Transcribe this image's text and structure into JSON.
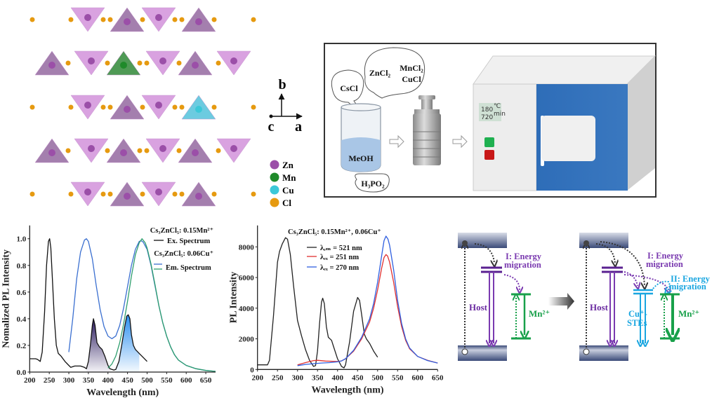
{
  "crystal": {
    "axes": {
      "b": "b",
      "c": "c",
      "a": "a"
    },
    "legend": [
      {
        "label": "Zn",
        "color": "#9b4fa8"
      },
      {
        "label": "Mn",
        "color": "#1f8a2a"
      },
      {
        "label": "Cu",
        "color": "#3cc8d8"
      },
      {
        "label": "Cl",
        "color": "#e69a10"
      }
    ]
  },
  "synthesis": {
    "bubble_cscl": "CsCl",
    "bubble_zncl2": "ZnCl₂",
    "bubble_mncl2": "MnCl₂",
    "bubble_cucl": "CuCl",
    "solvent": "MeOH",
    "bubble_h3po2": "H₃PO₂",
    "oven_temp": "180",
    "oven_temp_unit": "℃",
    "oven_time": "720",
    "oven_time_unit": "min"
  },
  "chart_data": [
    {
      "type": "line",
      "title": "",
      "xlabel": "Wavelength (nm)",
      "ylabel": "Nomalized PL Intensity",
      "xlim": [
        200,
        675
      ],
      "ylim": [
        0,
        1.1
      ],
      "xticks": [
        200,
        250,
        300,
        350,
        400,
        450,
        500,
        550,
        600,
        650
      ],
      "yticks": [
        0.0,
        0.2,
        0.4,
        0.6,
        0.8,
        1.0
      ],
      "legend": {
        "placement": "top-right",
        "group1": "Cs₃ZnCl₅: 0.15Mn²⁺",
        "ex_label": "Ex. Spectrum",
        "group2": "Cs₃ZnCl₅: 0.06Cu⁺",
        "em_label": "Em. Spectrum"
      },
      "series": [
        {
          "name": "Ex. Spectrum (black)",
          "color": "#111111",
          "x": [
            200,
            215,
            220,
            227,
            232,
            238,
            243,
            248,
            251,
            254,
            258,
            263,
            268,
            273,
            280,
            290,
            300,
            305,
            315,
            330,
            340,
            345,
            350,
            355,
            360,
            363,
            367,
            372,
            378,
            385,
            392,
            400,
            405,
            415,
            420,
            428,
            435,
            442,
            448,
            452,
            456,
            460,
            465,
            470,
            480,
            490,
            500
          ],
          "y": [
            0.1,
            0.1,
            0.095,
            0.08,
            0.15,
            0.45,
            0.8,
            0.98,
            1.0,
            0.93,
            0.7,
            0.4,
            0.2,
            0.14,
            0.12,
            0.08,
            0.05,
            0.035,
            0.045,
            0.045,
            0.035,
            0.025,
            0.08,
            0.2,
            0.35,
            0.4,
            0.35,
            0.22,
            0.19,
            0.17,
            0.12,
            0.05,
            0.025,
            0.015,
            0.02,
            0.08,
            0.2,
            0.33,
            0.42,
            0.43,
            0.4,
            0.28,
            0.2,
            0.17,
            0.14,
            0.11,
            0.08
          ]
        },
        {
          "name": "Em. Spectrum (blue)",
          "color": "#3a6fd0",
          "x": [
            300,
            310,
            320,
            330,
            340,
            345,
            350,
            360,
            370,
            380,
            390,
            400,
            410,
            420,
            430,
            440,
            450,
            460,
            470,
            480,
            485,
            490,
            500,
            510,
            520,
            530,
            540,
            550,
            560,
            570,
            580,
            600,
            625,
            650,
            675
          ],
          "y": [
            0.15,
            0.4,
            0.7,
            0.9,
            0.99,
            1.0,
            0.98,
            0.85,
            0.65,
            0.47,
            0.34,
            0.27,
            0.25,
            0.27,
            0.35,
            0.48,
            0.64,
            0.8,
            0.92,
            0.98,
            0.985,
            0.975,
            0.92,
            0.8,
            0.65,
            0.5,
            0.37,
            0.27,
            0.19,
            0.13,
            0.09,
            0.05,
            0.025,
            0.012,
            0.005
          ]
        },
        {
          "name": "Em. Spectrum (green)",
          "color": "#2e9e6e",
          "x": [
            400,
            410,
            420,
            430,
            440,
            450,
            460,
            470,
            480,
            487,
            495,
            500,
            510,
            520,
            530,
            540,
            550,
            560,
            570,
            580,
            600,
            625,
            650,
            675
          ],
          "y": [
            0.03,
            0.06,
            0.12,
            0.22,
            0.36,
            0.53,
            0.72,
            0.88,
            0.97,
            1.0,
            0.97,
            0.93,
            0.81,
            0.66,
            0.5,
            0.37,
            0.27,
            0.19,
            0.13,
            0.09,
            0.05,
            0.025,
            0.012,
            0.005
          ]
        }
      ],
      "shaded_regions": [
        {
          "x_from": 345,
          "x_to": 405,
          "color": "#2a1a5e"
        },
        {
          "x_from": 420,
          "x_to": 480,
          "color": "#3a9ef0"
        }
      ]
    },
    {
      "type": "line",
      "title": "Cs₃ZnCl₅: 0.15Mn²⁺, 0.06Cu⁺",
      "xlabel": "Wavelength (nm)",
      "ylabel": "PL Intensity",
      "xlim": [
        200,
        650
      ],
      "ylim": [
        0,
        9400
      ],
      "xticks": [
        200,
        250,
        300,
        350,
        400,
        450,
        500,
        550,
        600,
        650
      ],
      "yticks": [
        0,
        2000,
        4000,
        6000,
        8000
      ],
      "legend": {
        "placement": "top-left"
      },
      "series": [
        {
          "name": "λₑₘ = 521 nm",
          "color": "#222222",
          "x": [
            200,
            225,
            230,
            240,
            250,
            255,
            262,
            270,
            275,
            282,
            290,
            300,
            310,
            320,
            330,
            340,
            345,
            350,
            355,
            360,
            363,
            367,
            372,
            377,
            385,
            390,
            400,
            410,
            416,
            420,
            430,
            440,
            450,
            455,
            460,
            467,
            472,
            480,
            490,
            500
          ],
          "y": [
            300,
            300,
            600,
            3500,
            7000,
            7700,
            8200,
            8600,
            8500,
            7500,
            5500,
            3200,
            2200,
            1300,
            600,
            200,
            250,
            1200,
            3000,
            4400,
            4650,
            4300,
            2800,
            2100,
            1900,
            1500,
            700,
            200,
            100,
            300,
            1800,
            3800,
            4700,
            4500,
            3600,
            2300,
            2000,
            1700,
            1200,
            800
          ]
        },
        {
          "name": "λₑₓ = 251 nm",
          "color": "#e03030",
          "x": [
            300,
            320,
            340,
            350,
            370,
            400,
            410,
            420,
            440,
            460,
            480,
            490,
            500,
            510,
            516,
            521,
            525,
            530,
            540,
            550,
            560,
            570,
            580,
            600,
            625,
            650
          ],
          "y": [
            300,
            450,
            580,
            600,
            550,
            520,
            560,
            700,
            1200,
            2000,
            3100,
            4000,
            5200,
            6600,
            7300,
            7500,
            7400,
            7000,
            5700,
            4100,
            2800,
            1900,
            1350,
            850,
            600,
            420
          ]
        },
        {
          "name": "λₑₓ = 270 nm",
          "color": "#2f5fe0",
          "x": [
            300,
            320,
            340,
            360,
            380,
            400,
            410,
            420,
            440,
            460,
            480,
            490,
            500,
            510,
            516,
            521,
            526,
            530,
            540,
            550,
            560,
            570,
            580,
            600,
            625,
            650
          ],
          "y": [
            250,
            330,
            380,
            420,
            450,
            500,
            560,
            700,
            1250,
            2100,
            3300,
            4300,
            5700,
            7400,
            8400,
            8700,
            8500,
            8100,
            6500,
            4500,
            3000,
            2000,
            1400,
            850,
            580,
            420
          ]
        }
      ]
    }
  ],
  "energy_diagram": {
    "left": {
      "host_label": "Host",
      "migration_line1": "I: Energy",
      "migration_line2": "migration",
      "mn_label": "Mn²⁺"
    },
    "right": {
      "host_label": "Host",
      "cu_label_line1": "Cu⁺-",
      "cu_label_line2": "STEs",
      "migration1_line1": "I: Energy",
      "migration1_line2": "migration",
      "migration2_line1": "II: Energy",
      "migration2_line2": "migration",
      "mn_label": "Mn²⁺"
    },
    "colors": {
      "host": "#6a2aa0",
      "cu": "#1aa6e0",
      "mn": "#18a04a"
    }
  }
}
